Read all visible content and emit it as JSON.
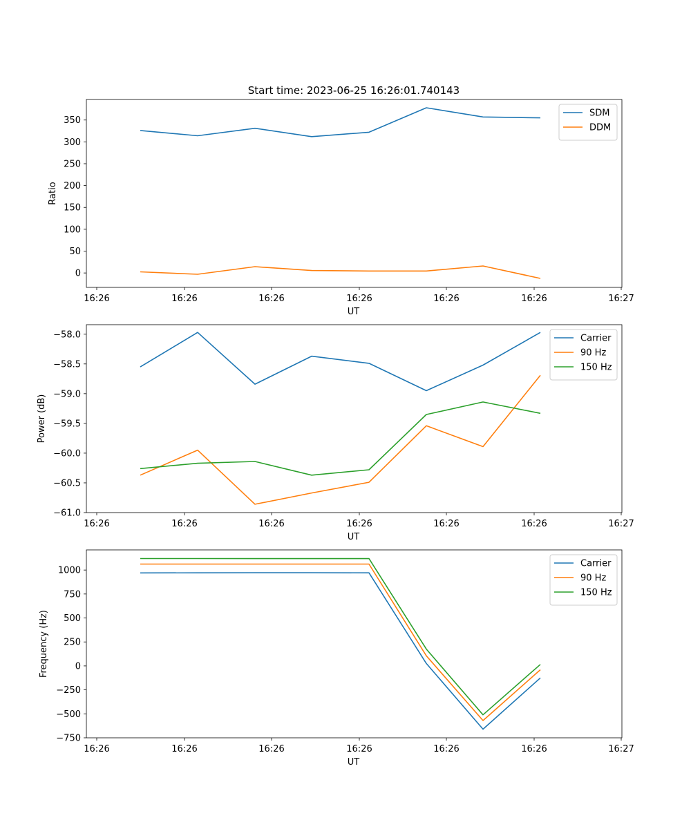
{
  "figure": {
    "title": "Start time: 2023-06-25 16:26:01.740143"
  },
  "chart_data": [
    {
      "type": "line",
      "xlabel": "UT",
      "ylabel": "Ratio",
      "x_ticks": [
        "16:26",
        "16:26",
        "16:26",
        "16:26",
        "16:26",
        "16:26",
        "16:27"
      ],
      "yticks": [
        0,
        50,
        100,
        150,
        200,
        250,
        300,
        350
      ],
      "ylim": [
        -33,
        397
      ],
      "grid": false,
      "legend_position": "top-right",
      "series": [
        {
          "name": "SDM",
          "color": "#1f77b4",
          "values": [
            326,
            314,
            331,
            312,
            322,
            378,
            357,
            355
          ]
        },
        {
          "name": "DDM",
          "color": "#ff7f0e",
          "values": [
            2.5,
            -3,
            14.5,
            5.5,
            4.5,
            4.5,
            16,
            -12.5
          ]
        }
      ]
    },
    {
      "type": "line",
      "xlabel": "UT",
      "ylabel": "Power (dB)",
      "x_ticks": [
        "16:26",
        "16:26",
        "16:26",
        "16:26",
        "16:26",
        "16:26",
        "16:27"
      ],
      "yticks": [
        -61.0,
        -60.5,
        -60.0,
        -59.5,
        -59.0,
        -58.5,
        -58.0
      ],
      "ylim": [
        -61.0,
        -57.84
      ],
      "grid": false,
      "legend_position": "top-right",
      "series": [
        {
          "name": "Carrier",
          "color": "#1f77b4",
          "values": [
            -58.55,
            -57.97,
            -58.84,
            -58.37,
            -58.49,
            -58.95,
            -58.52,
            -57.97
          ]
        },
        {
          "name": "90 Hz",
          "color": "#ff7f0e",
          "values": [
            -60.37,
            -59.95,
            -60.86,
            -60.67,
            -60.49,
            -59.54,
            -59.89,
            -58.69
          ]
        },
        {
          "name": "150 Hz",
          "color": "#2ca02c",
          "values": [
            -60.26,
            -60.17,
            -60.14,
            -60.37,
            -60.28,
            -59.35,
            -59.14,
            -59.33
          ]
        }
      ]
    },
    {
      "type": "line",
      "xlabel": "UT",
      "ylabel": "Frequency (Hz)",
      "x_ticks": [
        "16:26",
        "16:26",
        "16:26",
        "16:26",
        "16:26",
        "16:26",
        "16:27"
      ],
      "yticks": [
        -750,
        -500,
        -250,
        0,
        250,
        500,
        750,
        1000
      ],
      "ylim": [
        -750,
        1210
      ],
      "grid": false,
      "legend_position": "top-right",
      "series": [
        {
          "name": "Carrier",
          "color": "#1f77b4",
          "values": [
            970,
            971,
            972,
            972,
            971,
            25,
            -660,
            -125
          ]
        },
        {
          "name": "90 Hz",
          "color": "#ff7f0e",
          "values": [
            1062,
            1062,
            1062,
            1062,
            1062,
            105,
            -570,
            -40
          ]
        },
        {
          "name": "150 Hz",
          "color": "#2ca02c",
          "values": [
            1120,
            1120,
            1119,
            1119,
            1119,
            175,
            -510,
            15
          ]
        }
      ]
    }
  ]
}
